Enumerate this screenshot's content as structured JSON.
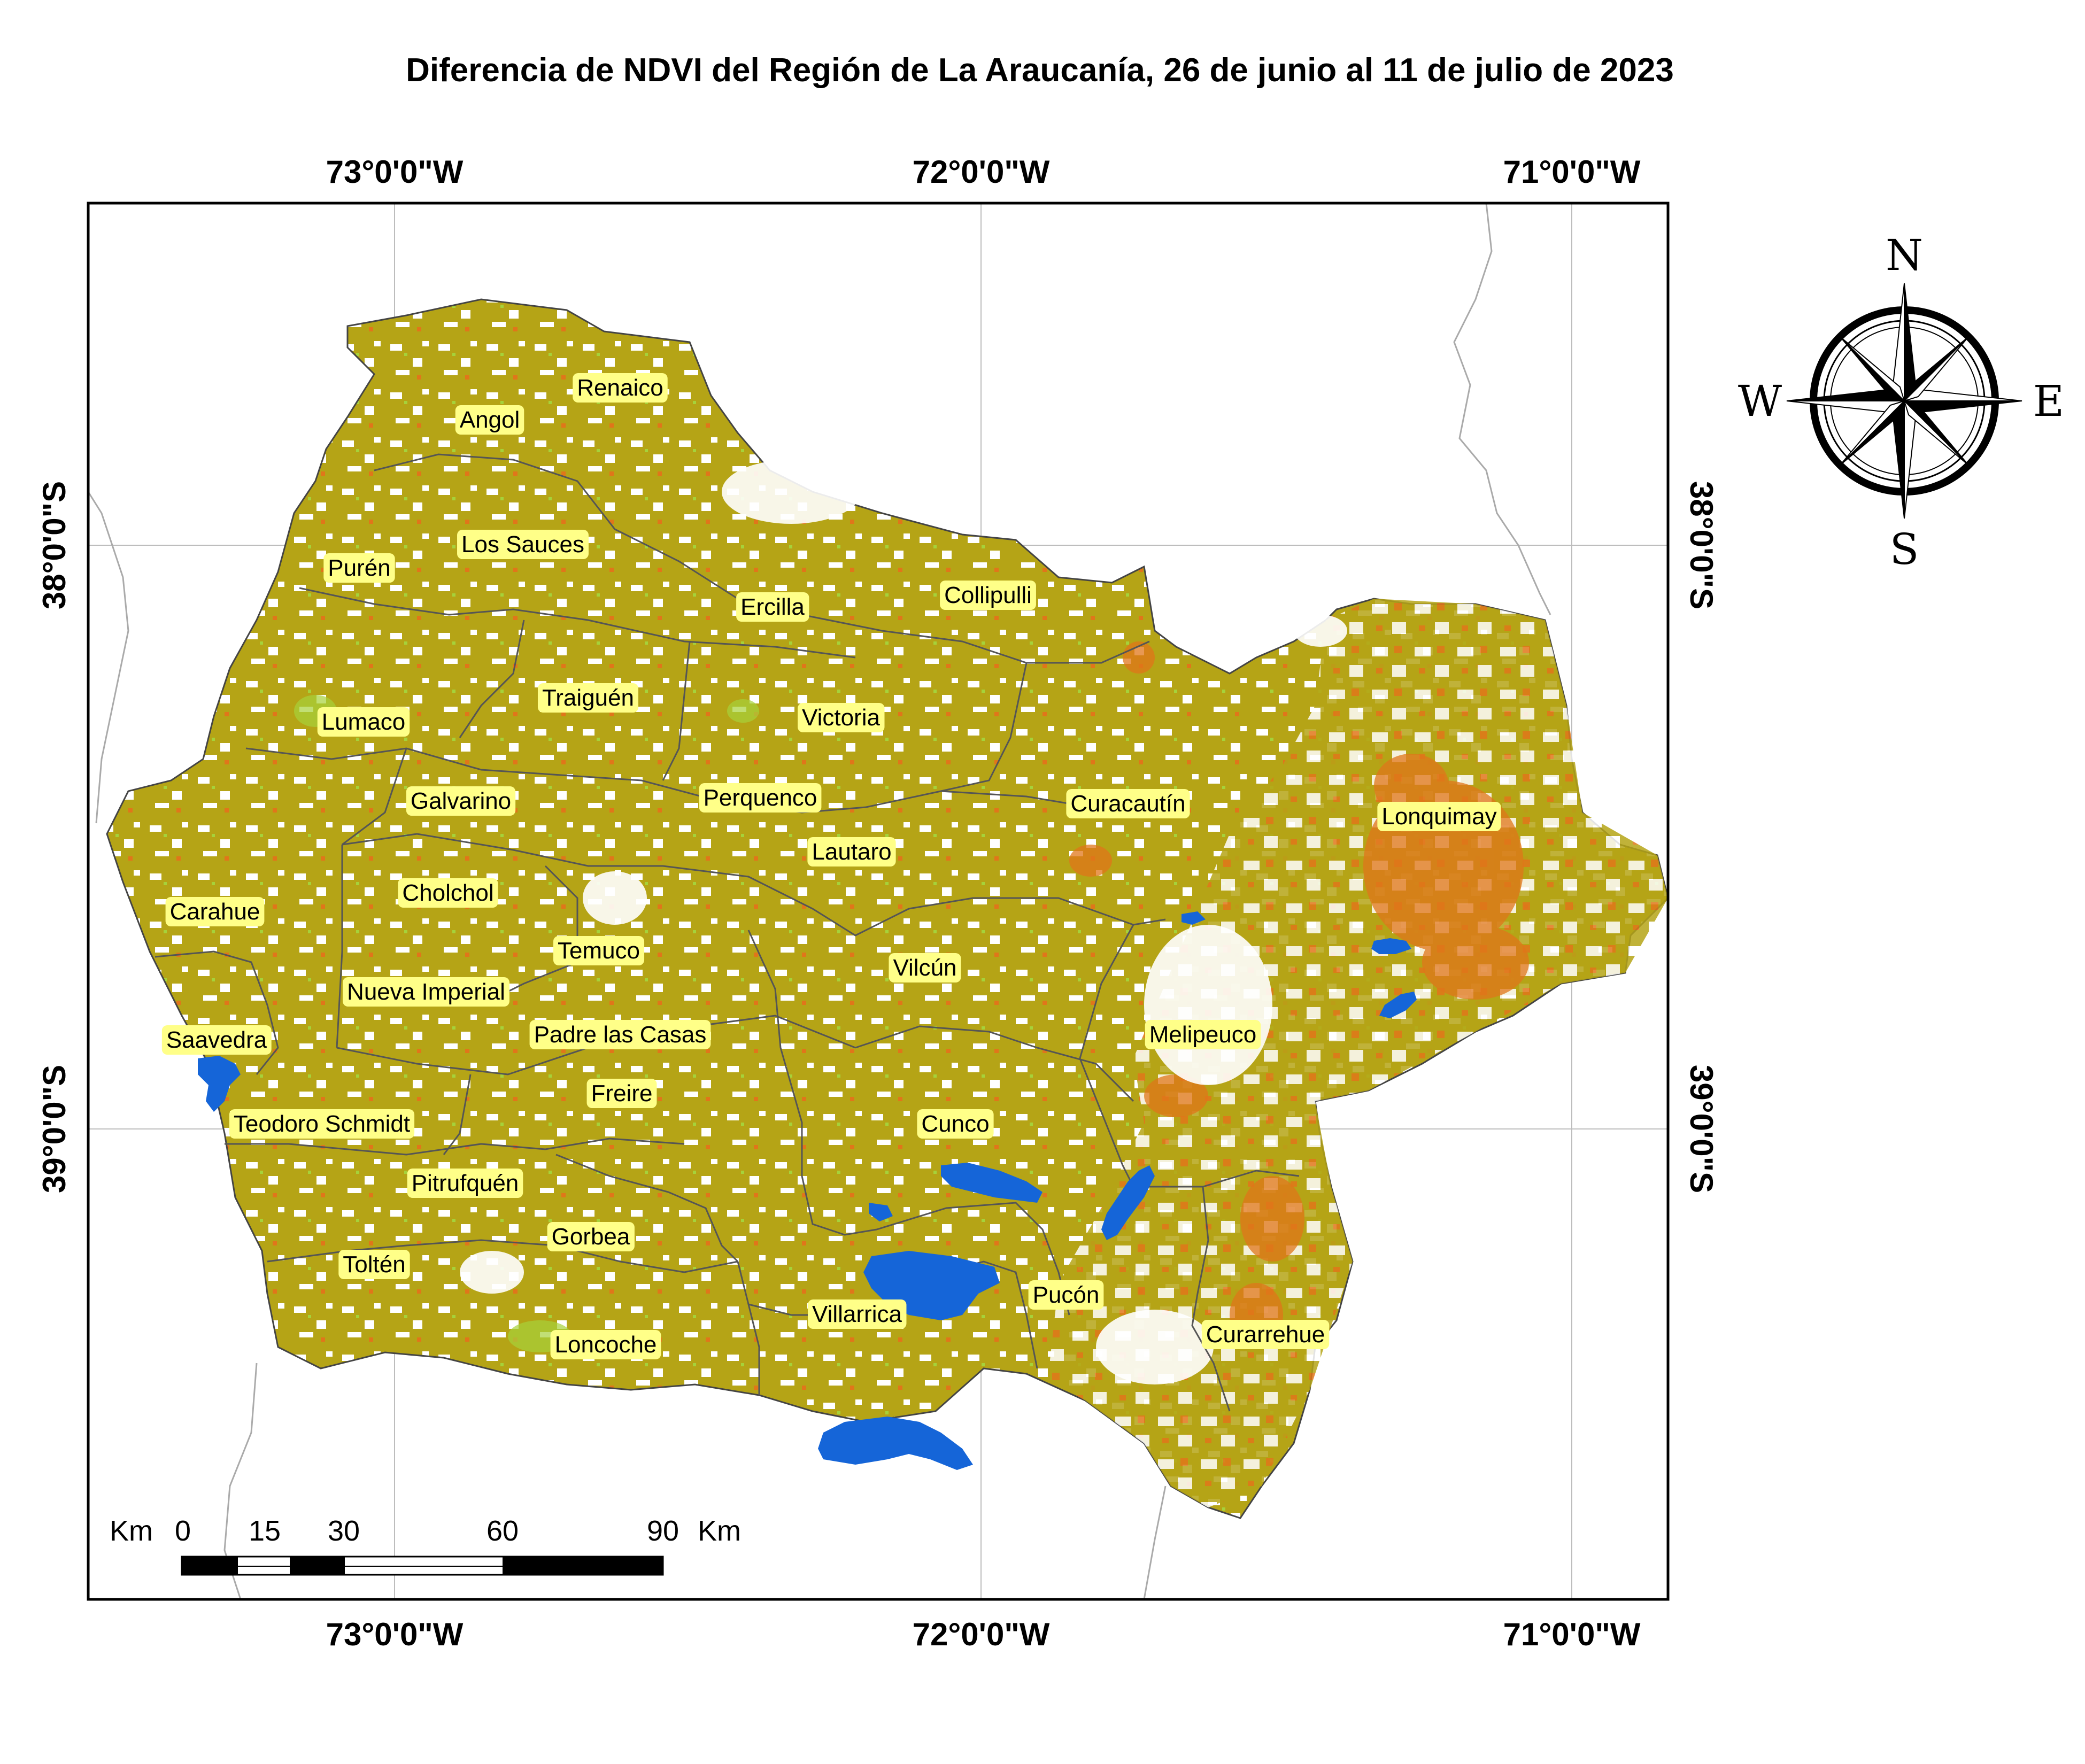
{
  "title": "Diferencia de NDVI del Región de La Araucanía, 26 de junio al 11 de julio de 2023",
  "longitude_labels": [
    "73°0'0\"W",
    "72°0'0\"W",
    "71°0'0\"W"
  ],
  "latitude_labels": [
    "38°0'0\"S",
    "39°0'0\"S"
  ],
  "compass": {
    "n": "N",
    "s": "S",
    "e": "E",
    "w": "W"
  },
  "scale_bar": {
    "unit_left": "Km",
    "unit_right": "Km",
    "ticks": [
      "0",
      "15",
      "30",
      "60",
      "90"
    ]
  },
  "colors": {
    "vegetation": "#B5A416",
    "decline": "#E0761A",
    "increase": "#A6D23A",
    "water": "#1565D8",
    "label_bg": "#FFFF88",
    "boundary": "#555555"
  },
  "communes": [
    {
      "name": "Renaico"
    },
    {
      "name": "Angol"
    },
    {
      "name": "Los Sauces"
    },
    {
      "name": "Purén"
    },
    {
      "name": "Collipulli"
    },
    {
      "name": "Ercilla"
    },
    {
      "name": "Traiguén"
    },
    {
      "name": "Lumaco"
    },
    {
      "name": "Victoria"
    },
    {
      "name": "Galvarino"
    },
    {
      "name": "Perquenco"
    },
    {
      "name": "Curacautín"
    },
    {
      "name": "Lonquimay"
    },
    {
      "name": "Lautaro"
    },
    {
      "name": "Cholchol"
    },
    {
      "name": "Carahue"
    },
    {
      "name": "Temuco"
    },
    {
      "name": "Vilcún"
    },
    {
      "name": "Nueva Imperial"
    },
    {
      "name": "Padre las Casas"
    },
    {
      "name": "Saavedra"
    },
    {
      "name": "Melipeuco"
    },
    {
      "name": "Freire"
    },
    {
      "name": "Teodoro Schmidt"
    },
    {
      "name": "Cunco"
    },
    {
      "name": "Pitrufquén"
    },
    {
      "name": "Gorbea"
    },
    {
      "name": "Toltén"
    },
    {
      "name": "Pucón"
    },
    {
      "name": "Villarrica"
    },
    {
      "name": "Curarrehue"
    },
    {
      "name": "Loncoche"
    }
  ]
}
